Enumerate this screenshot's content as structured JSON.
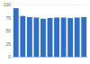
{
  "chart_data": {
    "type": "bar",
    "categories": [
      null,
      null,
      null,
      null,
      null,
      null,
      null,
      null,
      null,
      null,
      null
    ],
    "values": [
      93,
      78,
      76,
      75,
      73,
      74,
      75,
      75,
      74,
      75,
      76
    ],
    "color": "#2f6fc4",
    "ylim": [
      0,
      100
    ],
    "yticks": [
      0,
      25,
      50,
      75,
      100
    ],
    "grid": true
  }
}
